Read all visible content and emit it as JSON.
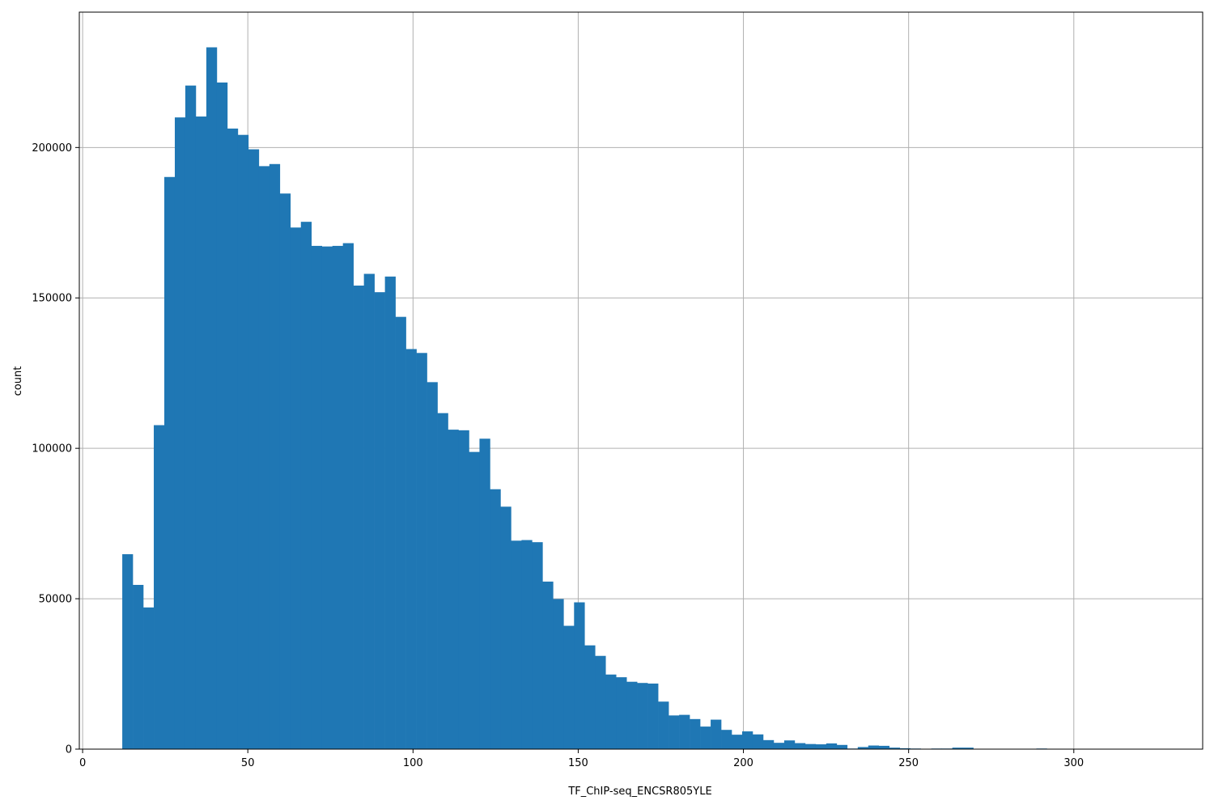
{
  "chart_data": {
    "type": "bar",
    "xlabel": "TF_ChIP-seq_ENCSR805YLE",
    "ylabel": "count",
    "grid": true,
    "bar_color": "#1f77b4",
    "grid_color": "#b0b0b0",
    "xlim": [
      -1,
      339
    ],
    "ylim": [
      0,
      245000
    ],
    "x_ticks": [
      0,
      50,
      100,
      150,
      200,
      250,
      300
    ],
    "y_ticks": [
      0,
      50000,
      100000,
      150000,
      200000
    ],
    "bin_start": 12,
    "bin_width": 3.18,
    "values": [
      64800,
      54600,
      47100,
      107700,
      190200,
      210000,
      220600,
      210300,
      233300,
      221600,
      206300,
      204200,
      199400,
      193800,
      194500,
      184700,
      173400,
      175300,
      167300,
      167100,
      167300,
      168200,
      154100,
      158000,
      151900,
      157100,
      143700,
      133000,
      131700,
      122000,
      111700,
      106200,
      106000,
      98800,
      103200,
      86400,
      80600,
      69300,
      69500,
      68800,
      55700,
      49900,
      41000,
      48800,
      34500,
      31000,
      24800,
      23900,
      22400,
      22000,
      21800,
      15800,
      11200,
      11400,
      10000,
      7500,
      9800,
      6400,
      4800,
      5900,
      4900,
      3000,
      2100,
      2900,
      2000,
      1700,
      1600,
      1900,
      1400,
      200,
      700,
      1200,
      1100,
      500,
      300,
      200,
      100,
      200,
      200,
      500,
      500,
      100,
      0,
      100,
      0,
      0,
      100,
      200,
      100,
      0,
      0,
      0,
      0,
      0,
      0,
      0,
      0,
      0,
      0,
      0
    ]
  }
}
